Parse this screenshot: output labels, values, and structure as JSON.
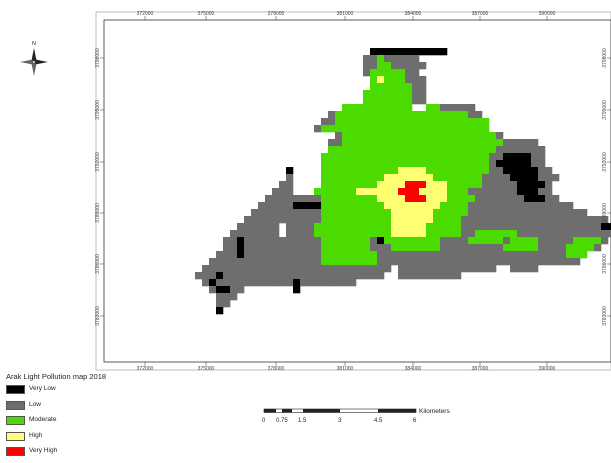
{
  "title": "Arak Light Pollution map 2018",
  "north_label": "N",
  "x_ticks": [
    "372000",
    "375000",
    "378000",
    "381000",
    "384000",
    "387000",
    "390000"
  ],
  "y_ticks": [
    "3798000",
    "3795000",
    "3792000",
    "3789000",
    "3786000",
    "3783000"
  ],
  "legend": [
    {
      "label": "Very Low",
      "color": "#000000"
    },
    {
      "label": "Low",
      "color": "#6e6e6e"
    },
    {
      "label": "Moderate",
      "color": "#4cdb00"
    },
    {
      "label": "High",
      "color": "#ffff73"
    },
    {
      "label": "Very High",
      "color": "#ff0000"
    }
  ],
  "scale_bar": {
    "labels": [
      "0",
      "0.75",
      "1.5",
      "3",
      "4.5",
      "6"
    ],
    "unit": "Kilometers"
  },
  "grid": [
    ".........................................................................",
    ".........................................................................",
    ".........................................................................",
    ".........................................................................",
    "......................................VVVVVVVVVVV........................",
    ".....................................LLMLLLLL............................",
    ".....................................LLMMLLLLL...........................",
    ".....................................LMMMMMLL............................",
    "......................................MHMMMLLL...........................",
    "......................................MMMMMMLL...........................",
    ".....................................MMMMMMMLL...........................",
    ".....................................MMMMMMMLL...........................",
    "..................................MMMMMMMMMM..MMLLLLL....................",
    "................................LMMMMMMMMMMMMMMMMMMMLL...................",
    "...............................LLMMMMMMMMMMMMMMMMMMMMMM..................",
    "..............................LMMMMMMMMMMMMMMMMMMMMMMMM..................",
    ".................................LMMMMMMMMMMMMMMMMMMMMMML.................",
    "................................LLMMMMMMMMMMMMMMMMMMMMMMMLLLLL............",
    "................................MMMMMMMMMMMMMMMMMMMMMMMMLLLLLLL...........",
    "...............................MMMMMMMMMMMMMMMMMMMMMMMMLLVVVVLL..........",
    "...............................MMMMMMMMMMMMMMMMMMMMMMMMLVVVVVLL..........",
    "..........................V....MMMMMMMMMMMHHHHMMMMMMMMMLLVVVVVLL.........",
    "..........................L....MMMMMMMMMHHHHHHHMMMMMMMLLLLVVVVLLL........",
    ".........................LL....MMMMMMMMHHHHRRRHHHMMMMMLLLLLVVVVL.........",
    "........................LLL...MMMMMMHHHHHHRRRHHHHMMMLLLLLLLVVVLL.........",
    ".......................LLLLLLLLMMMMMMMMHHHHRRRHHHMMMMLLLLLLLVVVLL........",
    "......................LLLLLVVVVMMMMMMMMMHHHHHHHHMMMMLLLLLLLLLLLLLLL......",
    ".....................LLLLLLLLLLMMMMMMMMMMHHHHHHMMMMMLLLLLLLLLLLLLLLLL....",
    "....................LLLLLLLLLLLMMMMMMMMMMHHHHHHMMMMLLLLLLLLLLLLLLLLLLLLL..",
    "...................LLLLLL.LLLLMMMMMMMMMMMHHHHHMMMMMLLLLLLLLLLLLLLLLLLLLVVV",
    "..................LLLLLLL.LLLLMMMMMMMMMMMHHHHHMMMMMLLMMMMMMLLLLLLLLLLLLLLL",
    ".................LLVLLLLLLLLLLLMMMMMMMLVMMMMMMMMLLLLMMMMMLMMMMLLLLLMMMML..",
    ".................LLVLLLLLLLLLLLMMMMMMMLLLMMMMMMMLLLLLLLLLMMMMMLLLLMMMML...",
    "................LLLVLLLLLLLLLLLMMMMMMMMLLLLLLLLLLLLLLLLLLLLLLLLLLLMMM....",
    "...............LLLLLLLLLLLLLLLLMMMMMMMMLLLLLLLLLLLLLLLLLLLLLLLLLLLLL.....",
    "..............LLLLLLLLLLLLLLLLLLLLLLLLLLL.LLLLLLLLLLLLLL..LLLL...........",
    ".............LLLVLLLLLLLLLLLLLLLLLLLLLLL..LLLLLLLLL......................",
    "..............LVLLLLLLLLLLLVLLLLLLLL.....................................",
    "...............LVVLL.......V.............................................",
    "................LLL......................................................",
    "................LL.......................................................",
    "................V........................................................",
    "........................................................................."
  ]
}
